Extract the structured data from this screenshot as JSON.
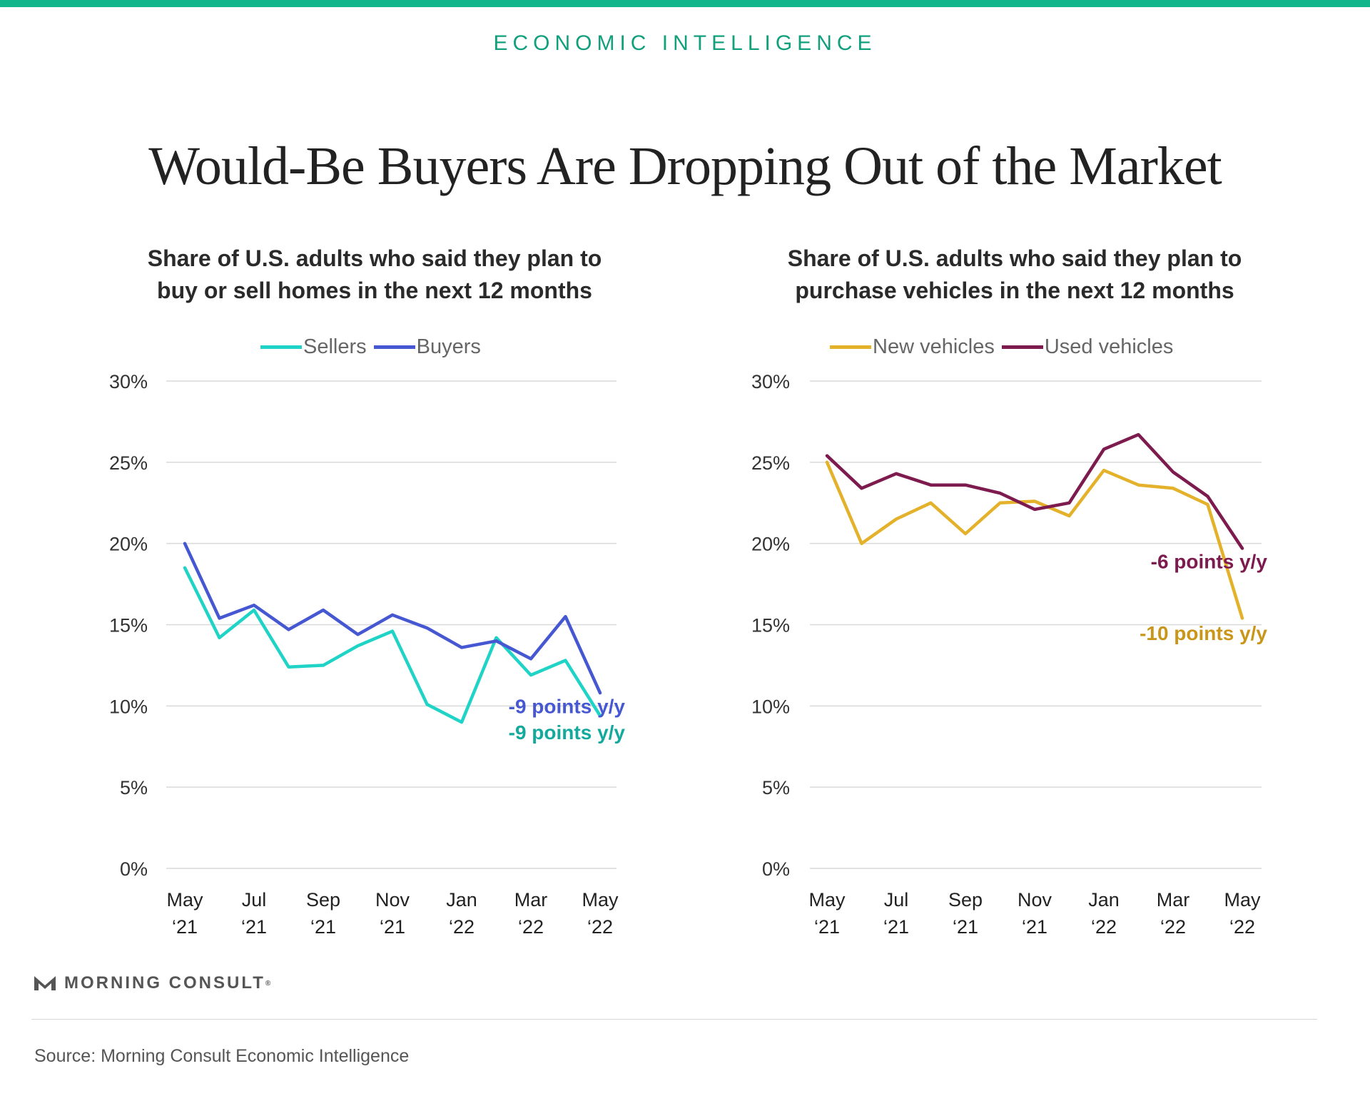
{
  "header": {
    "kicker": "ECONOMIC INTELLIGENCE",
    "title": "Would-Be Buyers Are Dropping Out of the Market",
    "accent_color": "#12b48a"
  },
  "footer": {
    "brand": "MORNING CONSULT",
    "brand_mark": "®",
    "source": "Source: Morning Consult Economic Intelligence"
  },
  "chart_data": [
    {
      "type": "line",
      "title_lines": [
        "Share of U.S. adults who said they plan to",
        "buy or sell homes in the next 12 months"
      ],
      "x": [
        "May 2021",
        "Jun 2021",
        "Jul 2021",
        "Aug 2021",
        "Sep 2021",
        "Oct 2021",
        "Nov 2021",
        "Dec 2021",
        "Jan 2022",
        "Feb 2022",
        "Mar 2022",
        "Apr 2022",
        "May 2022"
      ],
      "x_tick_labels": [
        {
          "index": 0,
          "line1": "May",
          "line2": "‘21"
        },
        {
          "index": 2,
          "line1": "Jul",
          "line2": "‘21"
        },
        {
          "index": 4,
          "line1": "Sep",
          "line2": "‘21"
        },
        {
          "index": 6,
          "line1": "Nov",
          "line2": "‘21"
        },
        {
          "index": 8,
          "line1": "Jan",
          "line2": "‘22"
        },
        {
          "index": 10,
          "line1": "Mar",
          "line2": "‘22"
        },
        {
          "index": 12,
          "line1": "May",
          "line2": "‘22"
        }
      ],
      "y_ticks": [
        "0%",
        "5%",
        "10%",
        "15%",
        "20%",
        "25%",
        "30%"
      ],
      "ylim": [
        0,
        30
      ],
      "grid": true,
      "legend_position": "top",
      "series": [
        {
          "name": "Sellers",
          "color": "#1fd3c6",
          "values": [
            18.5,
            14.2,
            15.9,
            12.4,
            12.5,
            13.7,
            14.6,
            10.1,
            9.0,
            14.2,
            11.9,
            12.8,
            9.4
          ]
        },
        {
          "name": "Buyers",
          "color": "#4657d2",
          "values": [
            20.0,
            15.4,
            16.2,
            14.7,
            15.9,
            14.4,
            15.6,
            14.8,
            13.6,
            14.0,
            12.9,
            15.5,
            10.8
          ]
        }
      ],
      "annotations": [
        {
          "text": "-9 points y/y",
          "color": "#4657d2",
          "x_index": 12,
          "y": 10.0
        },
        {
          "text": "-9 points y/y",
          "color": "#14a99d",
          "x_index": 12,
          "y": 8.4
        }
      ]
    },
    {
      "type": "line",
      "title_lines": [
        "Share of U.S. adults who said they plan to",
        "purchase vehicles in the next 12 months"
      ],
      "x": [
        "May 2021",
        "Jun 2021",
        "Jul 2021",
        "Aug 2021",
        "Sep 2021",
        "Oct 2021",
        "Nov 2021",
        "Dec 2021",
        "Jan 2022",
        "Feb 2022",
        "Mar 2022",
        "Apr 2022",
        "May 2022"
      ],
      "x_tick_labels": [
        {
          "index": 0,
          "line1": "May",
          "line2": "‘21"
        },
        {
          "index": 2,
          "line1": "Jul",
          "line2": "‘21"
        },
        {
          "index": 4,
          "line1": "Sep",
          "line2": "‘21"
        },
        {
          "index": 6,
          "line1": "Nov",
          "line2": "‘21"
        },
        {
          "index": 8,
          "line1": "Jan",
          "line2": "‘22"
        },
        {
          "index": 10,
          "line1": "Mar",
          "line2": "‘22"
        },
        {
          "index": 12,
          "line1": "May",
          "line2": "‘22"
        }
      ],
      "y_ticks": [
        "0%",
        "5%",
        "10%",
        "15%",
        "20%",
        "25%",
        "30%"
      ],
      "ylim": [
        0,
        30
      ],
      "grid": true,
      "legend_position": "top",
      "series": [
        {
          "name": "New vehicles",
          "color": "#e3b12a",
          "values": [
            25.0,
            20.0,
            21.5,
            22.5,
            20.6,
            22.5,
            22.6,
            21.7,
            24.5,
            23.6,
            23.4,
            22.4,
            15.4
          ]
        },
        {
          "name": "Used vehicles",
          "color": "#7d1a4e",
          "values": [
            25.4,
            23.4,
            24.3,
            23.6,
            23.6,
            23.1,
            22.1,
            22.5,
            25.8,
            26.7,
            24.4,
            22.9,
            19.7
          ]
        }
      ],
      "annotations": [
        {
          "text": "-6 points y/y",
          "color": "#7d1a4e",
          "x_index": 12,
          "y": 18.9
        },
        {
          "text": "-10 points y/y",
          "color": "#c9961a",
          "x_index": 12,
          "y": 14.5
        }
      ]
    }
  ]
}
